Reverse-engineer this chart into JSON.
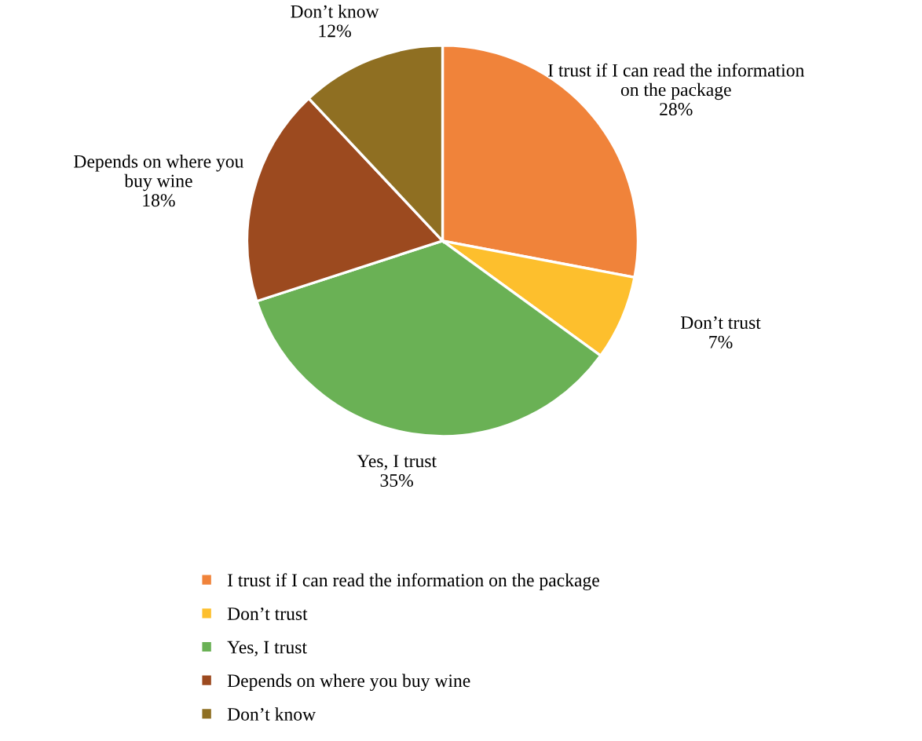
{
  "chart_data": {
    "type": "pie",
    "categories": [
      "I trust if I can read the information on the package",
      "Don’t trust",
      "Yes, I trust",
      "Depends on where you buy wine",
      "Don’t know"
    ],
    "values": [
      28,
      7,
      35,
      18,
      12
    ],
    "value_labels": [
      "28%",
      "7%",
      "35%",
      "18%",
      "12%"
    ],
    "colors": [
      "#f0833a",
      "#fdbf2d",
      "#6ab155",
      "#9c4a1f",
      "#8f6f22"
    ],
    "legend": "bottom"
  }
}
